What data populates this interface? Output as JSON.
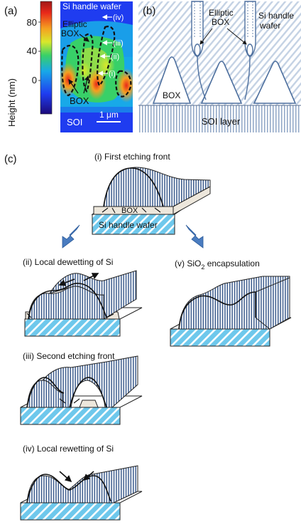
{
  "panel_a": {
    "label": "(a)",
    "colorbar": {
      "axis_label": "Height (nm)",
      "ticks": [
        "80",
        "40",
        "0"
      ],
      "tick_values": [
        80,
        40,
        0
      ],
      "range": [
        -30,
        100
      ],
      "colors": [
        "#1c0a7a",
        "#1f3cf0",
        "#18a8e8",
        "#38d068",
        "#d8e82c",
        "#f5a020",
        "#e8281a",
        "#a01818"
      ]
    },
    "map": {
      "title": "Si handle wafer",
      "elliptic_box": "Elliptic\nBOX",
      "box": "BOX",
      "soi": "SOI",
      "scale_bar": "1 μm",
      "markers": [
        "(iv)",
        "(iii)",
        "(ii)",
        "(i)"
      ]
    }
  },
  "panel_b": {
    "label": "(b)",
    "elliptic_box": "Elliptic\nBOX",
    "handle_wafer": "Si handle\nwafer",
    "box": "BOX",
    "soi_layer": "SOI layer"
  },
  "panel_c": {
    "label": "(c)",
    "steps": {
      "i": {
        "title": "(i) First etching front",
        "box": "BOX",
        "handle": "Si handle wafer"
      },
      "ii": {
        "title": "(ii) Local dewetting of Si"
      },
      "iii": {
        "title": "(iii) Second etching front"
      },
      "iv": {
        "title": "(iv) Local rewetting of Si"
      },
      "v": {
        "title_prefix": "(v) SiO",
        "title_sub": "2",
        "title_suffix": " encapsulation"
      }
    }
  },
  "colors": {
    "stripe": "#3a5a8c",
    "handle_fill": "#6ec8ec",
    "box_fill": "#ede7dc",
    "arrow": "#4a7cc0",
    "outline": "#1a1a1a"
  }
}
